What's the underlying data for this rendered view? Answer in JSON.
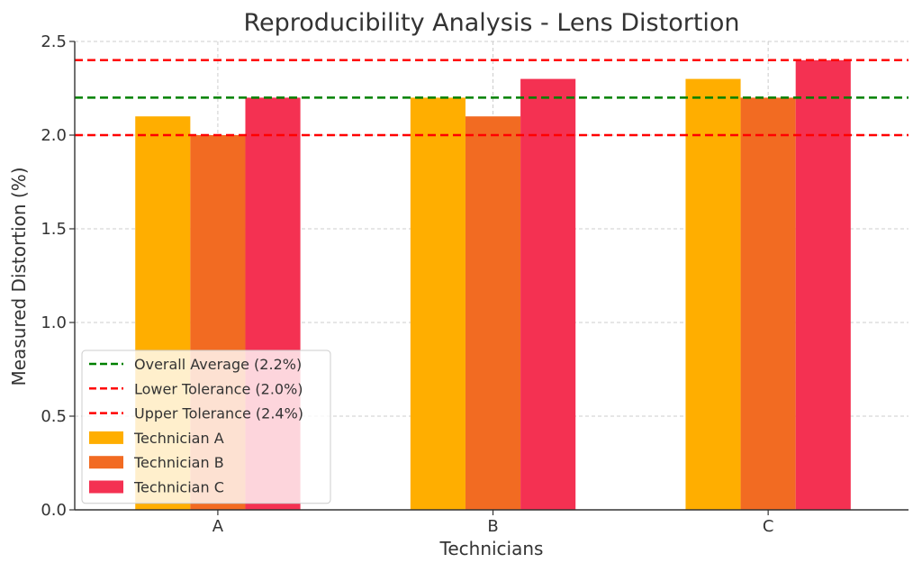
{
  "chart_data": {
    "type": "bar",
    "title": "Reproducibility Analysis - Lens Distortion",
    "xlabel": "Technicians",
    "ylabel": "Measured Distortion (%)",
    "categories": [
      "A",
      "B",
      "C"
    ],
    "series": [
      {
        "name": "Technician A",
        "color": "#FFAE00",
        "values": [
          2.1,
          2.2,
          2.3
        ]
      },
      {
        "name": "Technician B",
        "color": "#F26B22",
        "values": [
          2.0,
          2.1,
          2.2
        ]
      },
      {
        "name": "Technician C",
        "color": "#F43152",
        "values": [
          2.2,
          2.3,
          2.4
        ]
      }
    ],
    "reference_lines": [
      {
        "name": "Overall Average (2.2%)",
        "value": 2.2,
        "color": "#008000",
        "style": "dashed"
      },
      {
        "name": "Lower Tolerance (2.0%)",
        "value": 2.0,
        "color": "#FF0000",
        "style": "dashed"
      },
      {
        "name": "Upper Tolerance (2.4%)",
        "value": 2.4,
        "color": "#FF0000",
        "style": "dashed"
      }
    ],
    "ylim": [
      0,
      2.5
    ],
    "yticks": [
      "0.0",
      "0.5",
      "1.0",
      "1.5",
      "2.0",
      "2.5"
    ],
    "grid": true,
    "legend_position": "bottom-left"
  }
}
